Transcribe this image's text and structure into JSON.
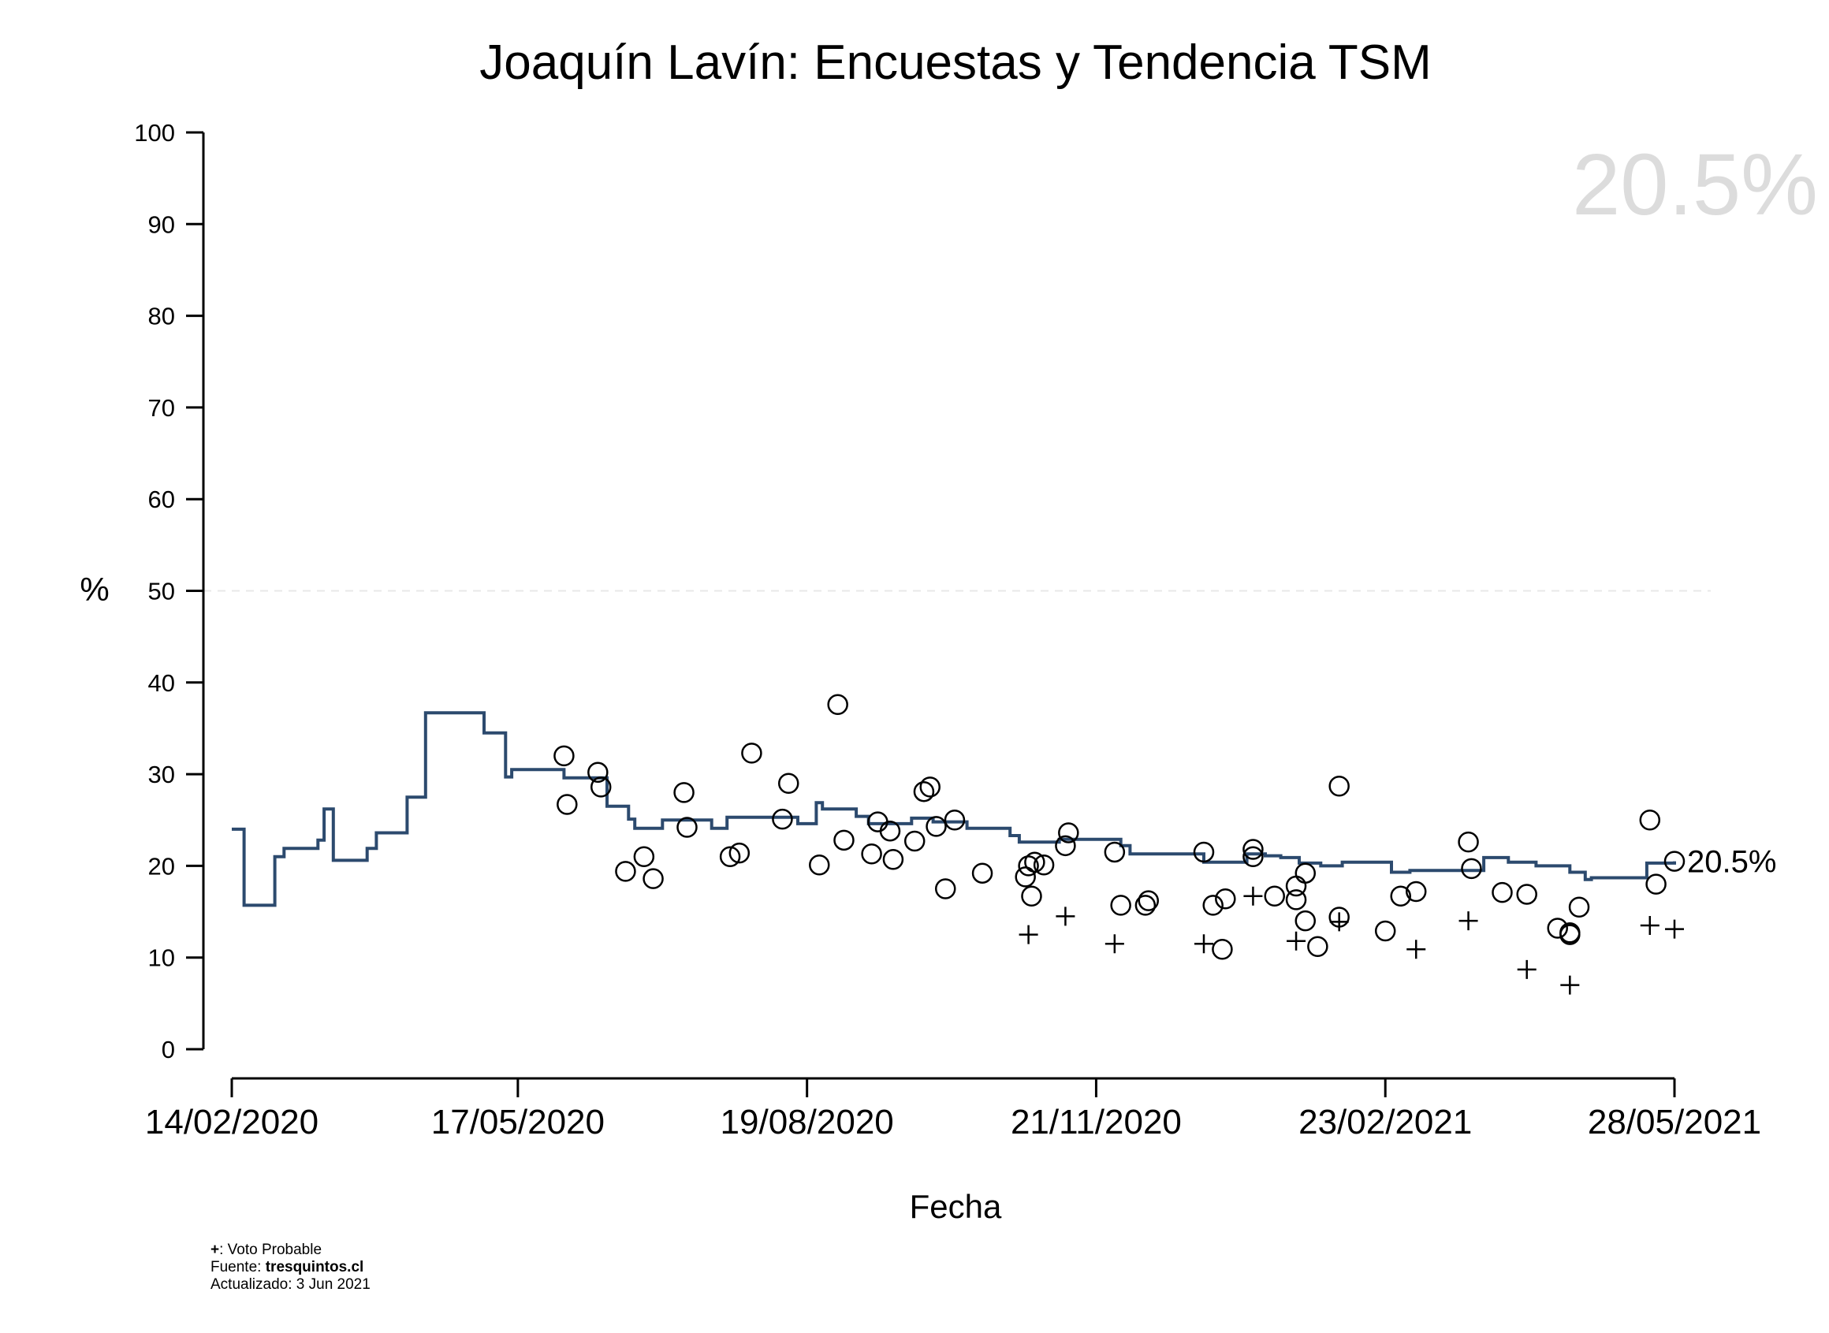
{
  "chart_data": {
    "type": "line",
    "title": "Joaquín Lavín: Encuestas y Tendencia TSM",
    "xlabel": "Fecha",
    "ylabel": "%",
    "ylim": [
      0,
      100
    ],
    "xlim": [
      "2020-02-14",
      "2021-05-28"
    ],
    "y_ticks": [
      0,
      10,
      20,
      30,
      40,
      50,
      60,
      70,
      80,
      90,
      100
    ],
    "x_ticks": [
      "2020-02-14",
      "2020-05-17",
      "2020-08-19",
      "2020-11-21",
      "2021-02-23",
      "2021-05-28"
    ],
    "x_tick_labels": [
      "14/02/2020",
      "17/05/2020",
      "19/08/2020",
      "21/11/2020",
      "23/02/2021",
      "28/05/2021"
    ],
    "reference_line": {
      "y": 50,
      "style": "dashed",
      "color": "#e8e8e8"
    },
    "big_value": "20.5%",
    "end_label": "20.5%",
    "grid": false,
    "colors": {
      "trend": "#2c4a6e",
      "points": "#000000",
      "big_value": "#dcdcdc",
      "reference": "#e8e8e8"
    },
    "series": [
      {
        "kind": "step",
        "points": [
          [
            "2020-02-14",
            24.0
          ],
          [
            "2020-02-18",
            15.7
          ],
          [
            "2020-02-28",
            21.0
          ],
          [
            "2020-03-02",
            21.9
          ],
          [
            "2020-03-13",
            22.8
          ],
          [
            "2020-03-15",
            26.2
          ],
          [
            "2020-03-18",
            20.6
          ],
          [
            "2020-03-29",
            21.9
          ],
          [
            "2020-04-01",
            23.6
          ],
          [
            "2020-04-11",
            27.5
          ],
          [
            "2020-04-17",
            36.7
          ],
          [
            "2020-04-30",
            36.7
          ],
          [
            "2020-05-06",
            34.5
          ],
          [
            "2020-05-13",
            29.7
          ],
          [
            "2020-05-15",
            30.5
          ],
          [
            "2020-06-01",
            29.6
          ],
          [
            "2020-06-15",
            26.5
          ],
          [
            "2020-06-22",
            25.1
          ],
          [
            "2020-06-24",
            24.1
          ],
          [
            "2020-07-03",
            25.0
          ],
          [
            "2020-07-19",
            24.1
          ],
          [
            "2020-07-24",
            25.3
          ],
          [
            "2020-08-16",
            24.6
          ],
          [
            "2020-08-22",
            26.9
          ],
          [
            "2020-08-24",
            26.2
          ],
          [
            "2020-09-04",
            25.4
          ],
          [
            "2020-09-08",
            24.6
          ],
          [
            "2020-09-22",
            25.2
          ],
          [
            "2020-09-29",
            24.8
          ],
          [
            "2020-10-10",
            24.1
          ],
          [
            "2020-10-24",
            23.3
          ],
          [
            "2020-10-27",
            22.6
          ],
          [
            "2020-11-09",
            22.9
          ],
          [
            "2020-11-29",
            22.2
          ],
          [
            "2020-12-02",
            21.3
          ],
          [
            "2020-12-20",
            21.3
          ],
          [
            "2020-12-26",
            20.4
          ],
          [
            "2021-01-03",
            20.4
          ],
          [
            "2021-01-09",
            21.3
          ],
          [
            "2021-01-15",
            21.1
          ],
          [
            "2021-01-20",
            20.9
          ],
          [
            "2021-01-26",
            20.3
          ],
          [
            "2021-02-02",
            20.0
          ],
          [
            "2021-02-09",
            20.4
          ],
          [
            "2021-02-25",
            19.3
          ],
          [
            "2021-03-03",
            19.5
          ],
          [
            "2021-03-10",
            19.5
          ],
          [
            "2021-03-27",
            20.9
          ],
          [
            "2021-04-04",
            20.4
          ],
          [
            "2021-04-13",
            20.0
          ],
          [
            "2021-04-24",
            19.3
          ],
          [
            "2021-04-29",
            18.5
          ],
          [
            "2021-05-01",
            18.7
          ],
          [
            "2021-05-19",
            20.3
          ],
          [
            "2021-05-28",
            20.5
          ]
        ]
      },
      {
        "name": "",
        "kind": "scatter",
        "marker": "circle",
        "points": [
          [
            "2020-06-01",
            32.0
          ],
          [
            "2020-06-02",
            26.7
          ],
          [
            "2020-06-12",
            30.2
          ],
          [
            "2020-06-13",
            28.6
          ],
          [
            "2020-06-21",
            19.4
          ],
          [
            "2020-06-27",
            21.0
          ],
          [
            "2020-06-30",
            18.6
          ],
          [
            "2020-07-10",
            28.0
          ],
          [
            "2020-07-11",
            24.2
          ],
          [
            "2020-07-25",
            21.0
          ],
          [
            "2020-07-28",
            21.4
          ],
          [
            "2020-08-01",
            32.3
          ],
          [
            "2020-08-11",
            25.1
          ],
          [
            "2020-08-13",
            29.0
          ],
          [
            "2020-08-23",
            20.1
          ],
          [
            "2020-08-29",
            37.6
          ],
          [
            "2020-08-31",
            22.8
          ],
          [
            "2020-09-09",
            21.3
          ],
          [
            "2020-09-11",
            24.8
          ],
          [
            "2020-09-15",
            23.8
          ],
          [
            "2020-09-16",
            20.7
          ],
          [
            "2020-09-23",
            22.7
          ],
          [
            "2020-09-26",
            28.1
          ],
          [
            "2020-09-28",
            28.6
          ],
          [
            "2020-09-30",
            24.3
          ],
          [
            "2020-10-03",
            17.5
          ],
          [
            "2020-10-06",
            25.0
          ],
          [
            "2020-10-15",
            19.2
          ],
          [
            "2020-10-29",
            18.8
          ],
          [
            "2020-10-30",
            20.0
          ],
          [
            "2020-10-31",
            16.7
          ],
          [
            "2020-11-01",
            20.4
          ],
          [
            "2020-11-04",
            20.1
          ],
          [
            "2020-11-11",
            22.2
          ],
          [
            "2020-11-12",
            23.6
          ],
          [
            "2020-11-27",
            21.5
          ],
          [
            "2020-11-29",
            15.7
          ],
          [
            "2020-12-07",
            15.7
          ],
          [
            "2020-12-08",
            16.2
          ],
          [
            "2020-12-26",
            21.5
          ],
          [
            "2020-12-29",
            15.7
          ],
          [
            "2021-01-01",
            10.9
          ],
          [
            "2021-01-02",
            16.4
          ],
          [
            "2021-01-11",
            21.0
          ],
          [
            "2021-01-11",
            21.8
          ],
          [
            "2021-01-18",
            16.7
          ],
          [
            "2021-01-25",
            16.3
          ],
          [
            "2021-01-25",
            17.8
          ],
          [
            "2021-01-28",
            14.0
          ],
          [
            "2021-01-28",
            19.2
          ],
          [
            "2021-02-01",
            11.2
          ],
          [
            "2021-02-08",
            14.4
          ],
          [
            "2021-02-08",
            28.7
          ],
          [
            "2021-02-23",
            12.9
          ],
          [
            "2021-02-28",
            16.7
          ],
          [
            "2021-03-05",
            17.2
          ],
          [
            "2021-03-22",
            22.6
          ],
          [
            "2021-03-23",
            19.7
          ],
          [
            "2021-04-02",
            17.1
          ],
          [
            "2021-04-10",
            16.9
          ],
          [
            "2021-04-20",
            13.2
          ],
          [
            "2021-04-24",
            12.5
          ],
          [
            "2021-04-24",
            12.7
          ],
          [
            "2021-04-27",
            15.5
          ],
          [
            "2021-05-20",
            25.0
          ],
          [
            "2021-05-22",
            18.0
          ],
          [
            "2021-05-28",
            20.5
          ]
        ]
      },
      {
        "name": "Voto Probable",
        "kind": "scatter",
        "marker": "plus",
        "points": [
          [
            "2020-10-30",
            12.5
          ],
          [
            "2020-11-11",
            14.5
          ],
          [
            "2020-11-27",
            11.5
          ],
          [
            "2020-12-26",
            11.5
          ],
          [
            "2021-01-11",
            16.7
          ],
          [
            "2021-01-25",
            11.8
          ],
          [
            "2021-02-08",
            13.9
          ],
          [
            "2021-03-05",
            10.9
          ],
          [
            "2021-03-22",
            14.0
          ],
          [
            "2021-04-10",
            8.7
          ],
          [
            "2021-04-24",
            7.0
          ],
          [
            "2021-05-20",
            13.5
          ],
          [
            "2021-05-28",
            13.1
          ]
        ]
      }
    ]
  },
  "footnotes": {
    "legend_marker": "+",
    "legend_text": ": Voto Probable",
    "source_label": "Fuente: ",
    "source_value": "tresquintos.cl",
    "updated": "Actualizado: 3 Jun 2021"
  }
}
